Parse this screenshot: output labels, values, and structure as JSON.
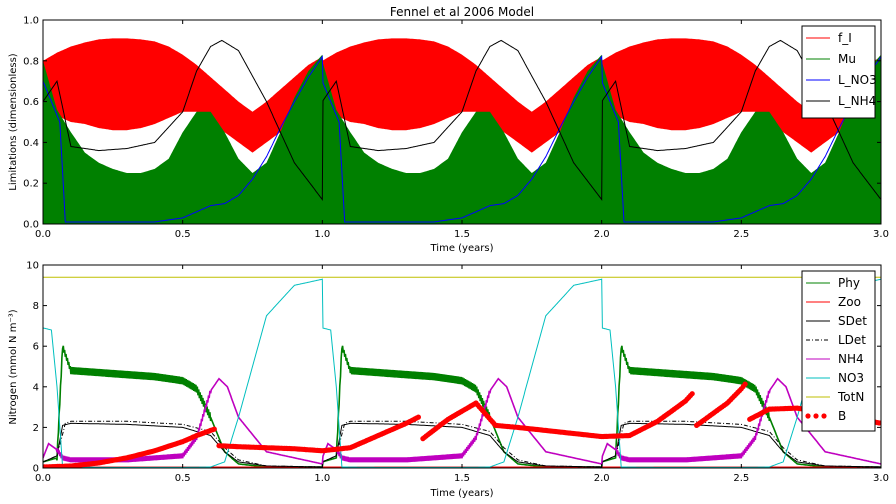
{
  "chart_data": [
    {
      "type": "area",
      "title": "Fennel et al 2006 Model",
      "xlabel": "Time (years)",
      "ylabel": "Limitations (dimensionless)",
      "xlim": [
        0,
        3
      ],
      "ylim": [
        0,
        1
      ],
      "xticks": [
        "0.0",
        "0.5",
        "1.0",
        "1.5",
        "2.0",
        "2.5",
        "3.0"
      ],
      "yticks": [
        "0.0",
        "0.2",
        "0.4",
        "0.6",
        "0.8",
        "1.0"
      ],
      "legend_position": "top-right",
      "series": [
        {
          "name": "f_I",
          "color": "#ff0000",
          "style": "oscillating band",
          "x": [
            0.0,
            0.05,
            0.1,
            0.15,
            0.2,
            0.25,
            0.3,
            0.35,
            0.4,
            0.45,
            0.5,
            0.55,
            0.6,
            0.65,
            0.7,
            0.75,
            0.8,
            0.85,
            0.9,
            0.95,
            1.0
          ],
          "upper": [
            0.8,
            0.84,
            0.87,
            0.89,
            0.905,
            0.91,
            0.91,
            0.905,
            0.895,
            0.87,
            0.83,
            0.78,
            0.72,
            0.66,
            0.6,
            0.55,
            0.6,
            0.66,
            0.72,
            0.78,
            0.82
          ],
          "lower": [
            0.55,
            0.53,
            0.5,
            0.49,
            0.47,
            0.46,
            0.46,
            0.47,
            0.49,
            0.52,
            0.55,
            0.55,
            0.5,
            0.45,
            0.4,
            0.35,
            0.4,
            0.45,
            0.5,
            0.55,
            0.6
          ]
        },
        {
          "name": "Mu",
          "color": "#008000",
          "style": "oscillating band",
          "x": [
            0.0,
            0.05,
            0.1,
            0.15,
            0.2,
            0.25,
            0.3,
            0.35,
            0.4,
            0.45,
            0.5,
            0.55,
            0.6,
            0.65,
            0.7,
            0.75,
            0.8,
            0.85,
            0.9,
            0.95,
            1.0
          ],
          "upper": [
            0.8,
            0.56,
            0.45,
            0.35,
            0.3,
            0.27,
            0.25,
            0.25,
            0.27,
            0.32,
            0.45,
            0.55,
            0.55,
            0.45,
            0.32,
            0.25,
            0.3,
            0.45,
            0.62,
            0.75,
            0.83
          ],
          "lower": [
            0.0,
            0.0,
            0.0,
            0.0,
            0.0,
            0.0,
            0.0,
            0.0,
            0.0,
            0.0,
            0.0,
            0.0,
            0.0,
            0.0,
            0.0,
            0.0,
            0.0,
            0.0,
            0.0,
            0.0,
            0.0
          ]
        },
        {
          "name": "L_NO3",
          "color": "#0000ff",
          "style": "line",
          "x": [
            0.0,
            0.03,
            0.06,
            0.08,
            0.2,
            0.4,
            0.5,
            0.55,
            0.6,
            0.65,
            0.7,
            0.75,
            0.8,
            0.85,
            0.9,
            0.95,
            1.0,
            1.05,
            1.1,
            1.11
          ],
          "y": [
            0.7,
            0.6,
            0.5,
            0.01,
            0.01,
            0.01,
            0.03,
            0.06,
            0.09,
            0.1,
            0.14,
            0.22,
            0.33,
            0.47,
            0.6,
            0.72,
            0.82,
            0.86,
            0.8,
            0.01
          ]
        },
        {
          "name": "L_NH4",
          "color": "#000000",
          "style": "line",
          "x": [
            0.0,
            0.05,
            0.1,
            0.2,
            0.3,
            0.4,
            0.5,
            0.55,
            0.6,
            0.64,
            0.7,
            0.8,
            0.9,
            1.0,
            1.05,
            1.1
          ],
          "y": [
            0.6,
            0.7,
            0.38,
            0.36,
            0.37,
            0.4,
            0.55,
            0.75,
            0.87,
            0.9,
            0.85,
            0.6,
            0.3,
            0.12,
            0.1,
            0.2
          ]
        }
      ]
    },
    {
      "type": "line",
      "title": "",
      "xlabel": "Time (years)",
      "ylabel": "Nitrogen (mmol N m⁻³)",
      "xlim": [
        0,
        3
      ],
      "ylim": [
        0,
        10
      ],
      "xticks": [
        "0.0",
        "0.5",
        "1.0",
        "1.5",
        "2.0",
        "2.5",
        "3.0"
      ],
      "yticks": [
        "0",
        "2",
        "4",
        "6",
        "8",
        "10"
      ],
      "legend_position": "top-right",
      "series": [
        {
          "name": "Phy",
          "color": "#008000",
          "style": "oscillating band",
          "x": [
            0.0,
            0.05,
            0.07,
            0.1,
            0.2,
            0.3,
            0.4,
            0.5,
            0.55,
            0.6,
            0.65,
            0.7,
            0.8,
            0.9,
            1.0,
            1.1
          ],
          "y": [
            0.3,
            0.5,
            6.0,
            4.8,
            4.7,
            4.6,
            4.5,
            4.3,
            3.9,
            2.5,
            0.8,
            0.2,
            0.05,
            0.05,
            0.05,
            0.05
          ]
        },
        {
          "name": "Zoo",
          "color": "#ff0000",
          "style": "line",
          "x": [
            0.0,
            1.0
          ],
          "y": [
            0.05,
            0.05
          ]
        },
        {
          "name": "SDet",
          "color": "#000000",
          "style": "line",
          "x": [
            0.0,
            0.05,
            0.07,
            0.1,
            0.3,
            0.5,
            0.6,
            0.65,
            0.7,
            0.8,
            1.0,
            1.1
          ],
          "y": [
            0.3,
            0.6,
            2.1,
            2.2,
            2.15,
            2.0,
            1.6,
            0.8,
            0.3,
            0.1,
            0.05,
            0.05
          ]
        },
        {
          "name": "LDet",
          "color": "#000000",
          "style": "dash-dot",
          "x": [
            0.0,
            0.05,
            0.08,
            0.1,
            0.3,
            0.5,
            0.6,
            0.65,
            0.7,
            0.8,
            1.0,
            1.1
          ],
          "y": [
            0.3,
            0.6,
            2.2,
            2.3,
            2.3,
            2.15,
            1.8,
            1.0,
            0.4,
            0.1,
            0.05,
            0.05
          ]
        },
        {
          "name": "NH4",
          "color": "#bf00bf",
          "style": "oscillating band",
          "x": [
            0.0,
            0.02,
            0.05,
            0.07,
            0.1,
            0.3,
            0.5,
            0.55,
            0.6,
            0.63,
            0.66,
            0.7,
            0.8,
            1.0,
            1.1
          ],
          "y": [
            0.5,
            1.2,
            0.9,
            0.5,
            0.4,
            0.4,
            0.6,
            1.5,
            3.8,
            4.4,
            4.0,
            2.5,
            0.8,
            0.2,
            0.3
          ]
        },
        {
          "name": "NO3",
          "color": "#00bfbf",
          "style": "line",
          "x": [
            0.0,
            0.03,
            0.05,
            0.07,
            0.2,
            0.5,
            0.6,
            0.65,
            0.7,
            0.8,
            0.9,
            1.0,
            1.05,
            1.08,
            1.1
          ],
          "y": [
            6.9,
            6.8,
            4.0,
            0.05,
            0.03,
            0.03,
            0.05,
            0.3,
            2.5,
            7.5,
            9.0,
            9.3,
            9.35,
            8.0,
            0.1
          ]
        },
        {
          "name": "TotN",
          "color": "#bfbf00",
          "style": "line",
          "x": [
            0.0,
            3.0
          ],
          "y": [
            9.4,
            9.4
          ]
        },
        {
          "name": "B",
          "color": "#ff0000",
          "style": "dots",
          "x": [
            0.0,
            0.1,
            0.2,
            0.3,
            0.4,
            0.5,
            0.55,
            0.6,
            0.62,
            0.63,
            0.7,
            0.8,
            0.9,
            1.0,
            1.1,
            1.2,
            1.3,
            1.35,
            1.36,
            1.45,
            1.55,
            1.62,
            1.7,
            1.8,
            1.9,
            2.0,
            2.1,
            2.2,
            2.3,
            2.33,
            2.34,
            2.45,
            2.5,
            2.52,
            2.53,
            2.6,
            2.7,
            2.8,
            2.9,
            3.0
          ],
          "y": [
            0.05,
            0.1,
            0.25,
            0.5,
            0.85,
            1.3,
            1.6,
            1.85,
            1.95,
            1.1,
            1.05,
            1.0,
            0.95,
            0.85,
            1.0,
            1.6,
            2.2,
            2.55,
            1.45,
            2.4,
            3.2,
            2.1,
            2.0,
            1.85,
            1.7,
            1.55,
            1.6,
            2.3,
            3.3,
            3.75,
            2.1,
            3.2,
            3.9,
            4.25,
            2.4,
            2.9,
            2.95,
            2.75,
            2.5,
            2.2
          ]
        }
      ]
    }
  ]
}
